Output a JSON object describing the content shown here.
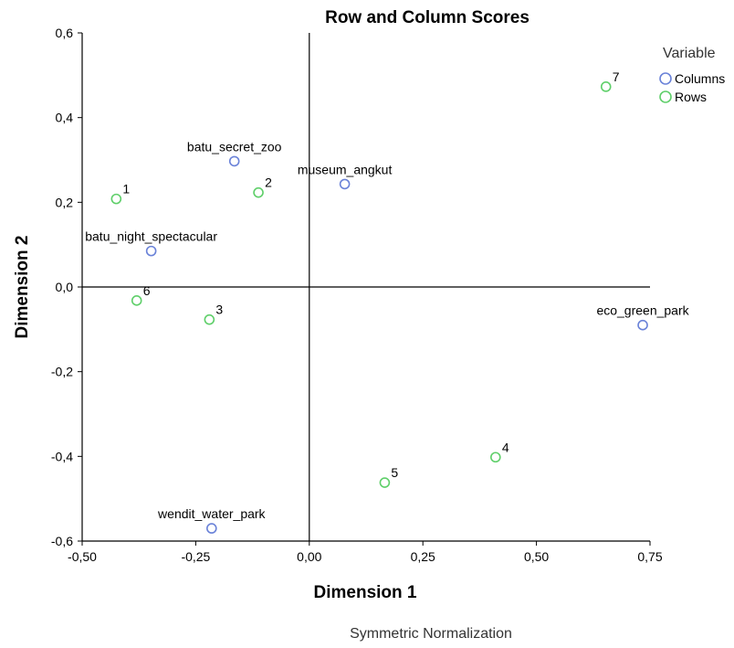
{
  "chart_data": {
    "type": "scatter",
    "title": "Row and Column Scores",
    "xlabel": "Dimension 1",
    "ylabel": "Dimension 2",
    "footnote": "Symmetric Normalization",
    "xlim": [
      -0.5,
      0.75
    ],
    "ylim": [
      -0.6,
      0.6
    ],
    "x_ticks": [
      -0.5,
      -0.25,
      0.0,
      0.25,
      0.5,
      0.75
    ],
    "x_tick_labels": [
      "-0,50",
      "-0,25",
      "0,00",
      "0,25",
      "0,50",
      "0,75"
    ],
    "y_ticks": [
      -0.6,
      -0.4,
      -0.2,
      0.0,
      0.2,
      0.4,
      0.6
    ],
    "y_tick_labels": [
      "-0,6",
      "-0,4",
      "-0,2",
      "0,0",
      "0,2",
      "0,4",
      "0,6"
    ],
    "grid": false,
    "reference_lines": {
      "x": 0,
      "y": 0
    },
    "legend": {
      "title": "Variable",
      "position": "top-right"
    },
    "series": [
      {
        "name": "Columns",
        "color": "#6a82d8",
        "points": [
          {
            "label": "batu_secret_zoo",
            "x": -0.165,
            "y": 0.297
          },
          {
            "label": "museum_angkut",
            "x": 0.078,
            "y": 0.243
          },
          {
            "label": "batu_night_spectacular",
            "x": -0.348,
            "y": 0.085
          },
          {
            "label": "eco_green_park",
            "x": 0.734,
            "y": -0.09
          },
          {
            "label": "wendit_water_park",
            "x": -0.215,
            "y": -0.57
          }
        ]
      },
      {
        "name": "Rows",
        "color": "#5fcf6a",
        "points": [
          {
            "label": "1",
            "x": -0.425,
            "y": 0.208
          },
          {
            "label": "2",
            "x": -0.112,
            "y": 0.223
          },
          {
            "label": "3",
            "x": -0.22,
            "y": -0.077
          },
          {
            "label": "4",
            "x": 0.41,
            "y": -0.402
          },
          {
            "label": "5",
            "x": 0.166,
            "y": -0.462
          },
          {
            "label": "6",
            "x": -0.38,
            "y": -0.032
          },
          {
            "label": "7",
            "x": 0.653,
            "y": 0.473
          }
        ]
      }
    ]
  }
}
